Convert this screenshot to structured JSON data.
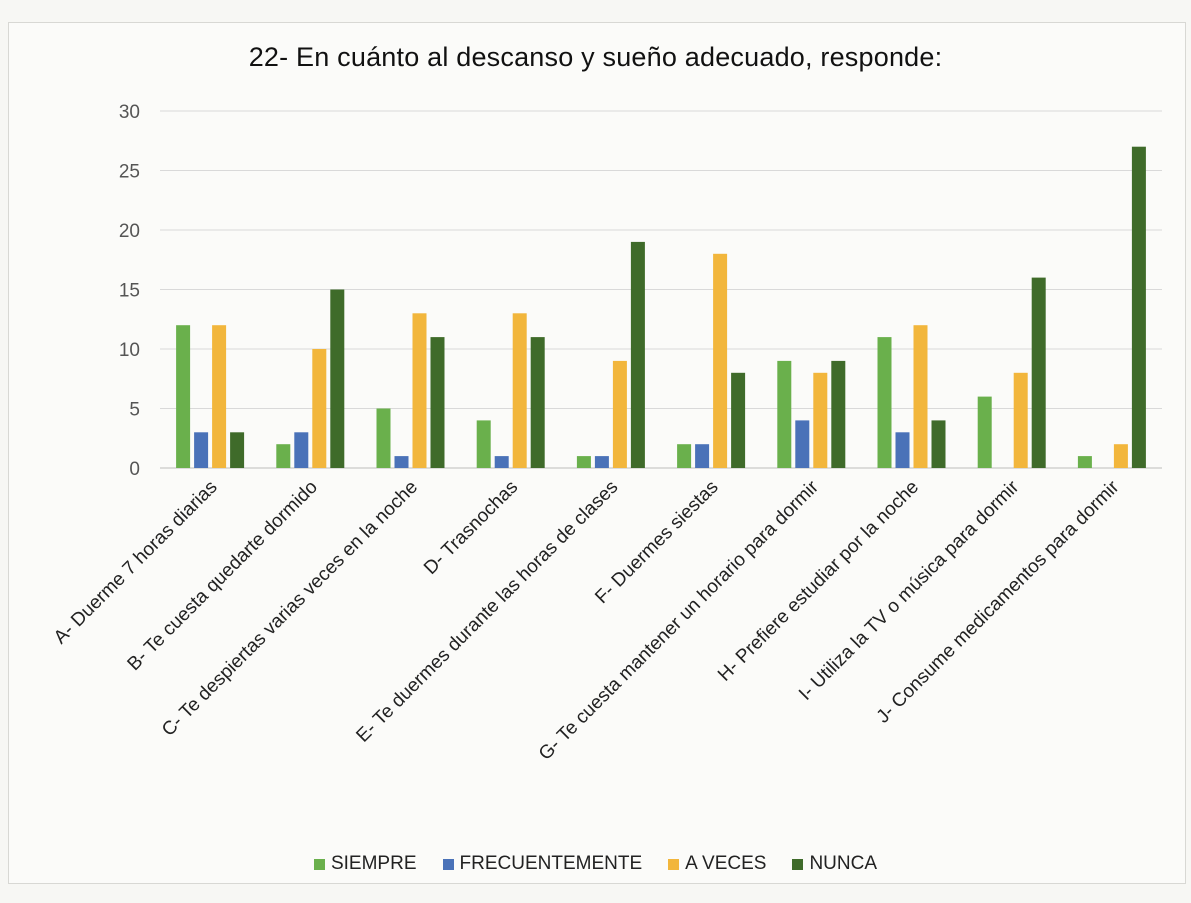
{
  "chart_data": {
    "type": "bar",
    "title": "22- En cuánto al descanso y sueño adecuado, responde:",
    "categories": [
      "A- Duerme 7 horas diarias",
      "B- Te cuesta quedarte dormido",
      "C- Te despiertas varias veces en la noche",
      "D- Trasnochas",
      "E- Te duermes durante las horas de clases",
      "F- Duermes siestas",
      "G- Te cuesta mantener un horario para dormir",
      "H- Prefiere estudiar por la noche",
      "I- Utiliza la TV o música para dormir",
      "J- Consume medicamentos para dormir"
    ],
    "series": [
      {
        "name": "SIEMPRE",
        "color": "#6ab04c",
        "values": [
          12,
          2,
          5,
          4,
          1,
          2,
          9,
          11,
          6,
          1
        ]
      },
      {
        "name": "FRECUENTEMENTE",
        "color": "#4a72b8",
        "values": [
          3,
          3,
          1,
          1,
          1,
          2,
          4,
          3,
          0,
          0
        ]
      },
      {
        "name": "A VECES",
        "color": "#f2b63c",
        "values": [
          12,
          10,
          13,
          13,
          9,
          18,
          8,
          12,
          8,
          2
        ]
      },
      {
        "name": "NUNCA",
        "color": "#3f6b2a",
        "values": [
          3,
          15,
          11,
          11,
          19,
          8,
          9,
          4,
          16,
          27
        ]
      }
    ],
    "ylim": [
      0,
      30
    ],
    "yticks": [
      0,
      5,
      10,
      15,
      20,
      25,
      30
    ],
    "grid": true,
    "legend_position": "bottom"
  }
}
